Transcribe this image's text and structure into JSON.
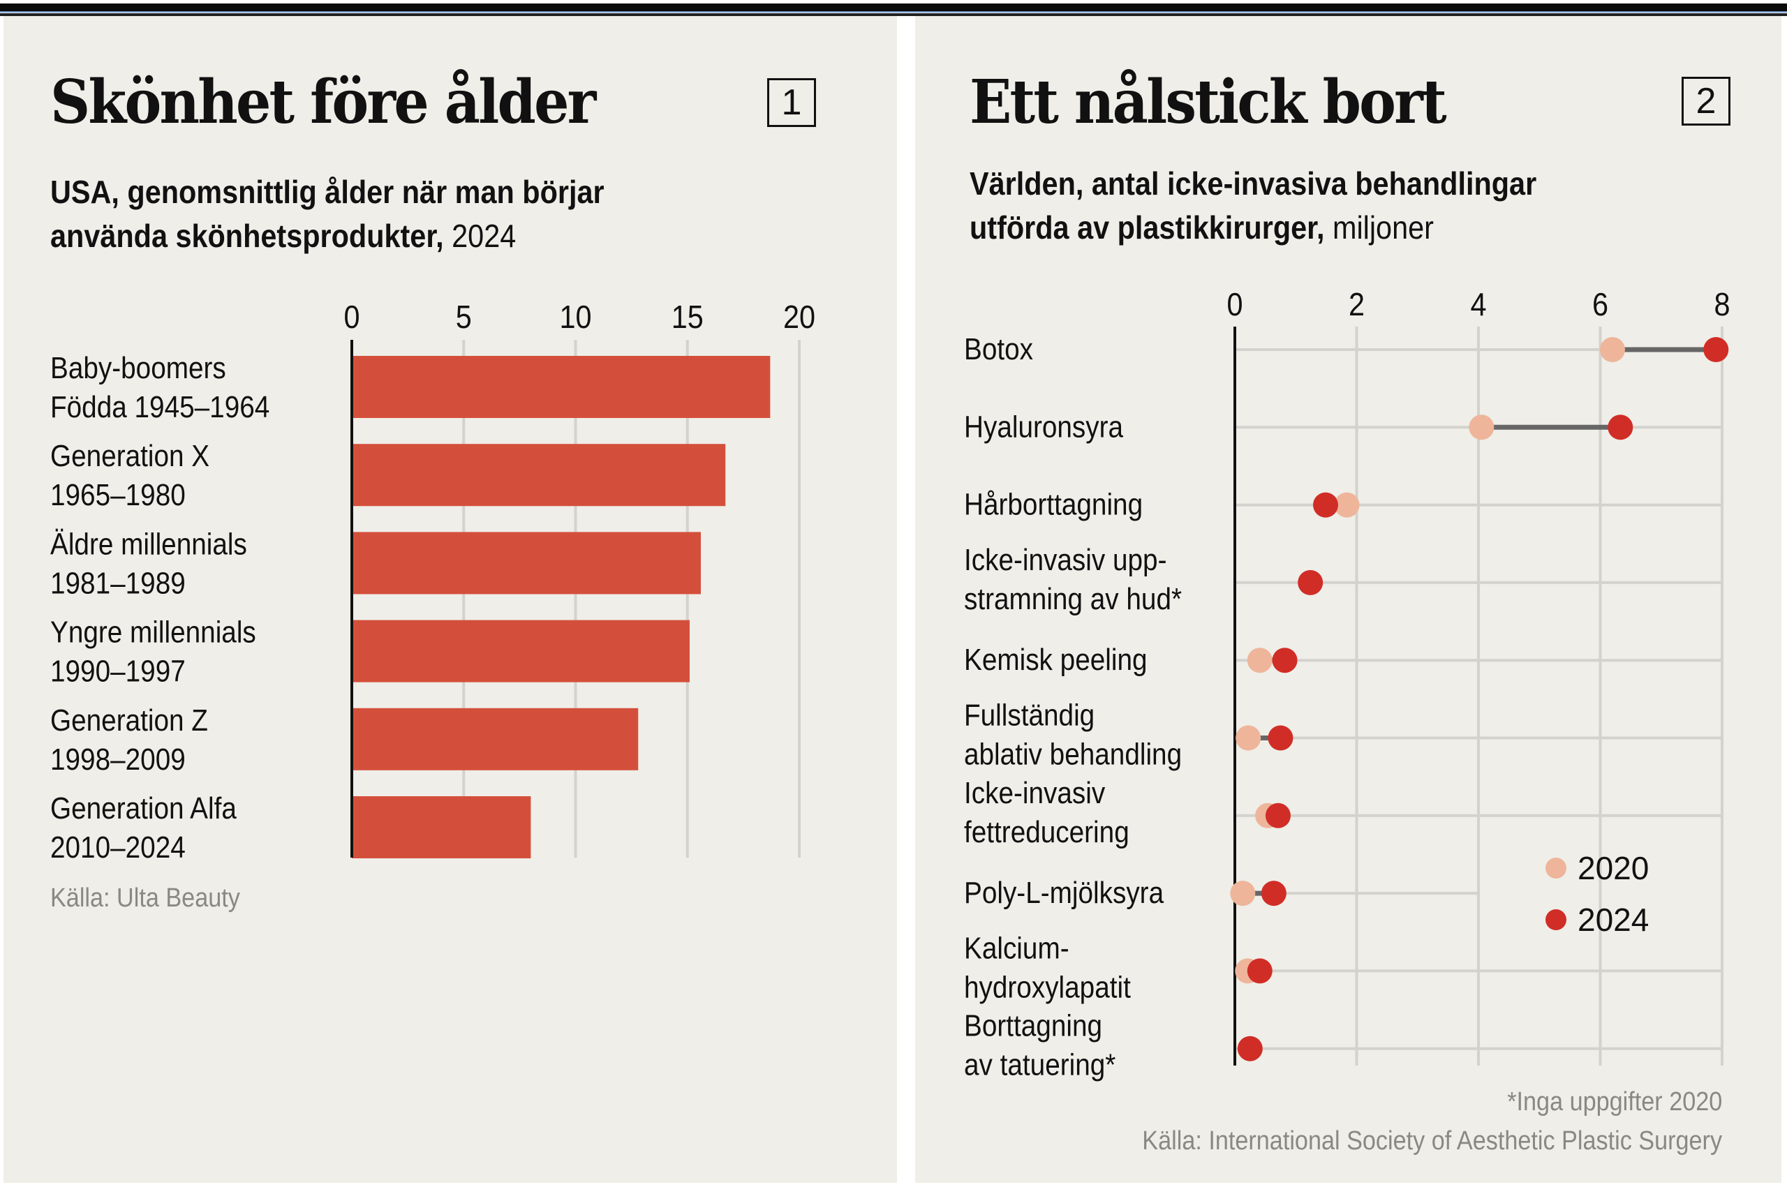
{
  "panels": [
    {
      "number": "1",
      "title": "Skönhet före ålder",
      "subtitle_bold": "USA, genomsnittlig ålder när man börjar använda skönhetsprodukter,",
      "subtitle_bold_line1": "USA, genomsnittlig ålder när man börjar",
      "subtitle_bold_line2": "använda skönhetsprodukter,",
      "subtitle_light": "2024",
      "source": "Källa: Ulta Beauty"
    },
    {
      "number": "2",
      "title": "Ett nålstick bort",
      "subtitle_bold_line1": "Världen, antal icke-invasiva behandlingar",
      "subtitle_bold_line2": "utförda av plastikkirurger,",
      "subtitle_light": "miljoner",
      "footnote": "*Inga uppgifter 2020",
      "source": "Källa: International Society of Aesthetic Plastic Surgery"
    }
  ],
  "colors": {
    "background": "#efeee8",
    "bar": "#d44f3b",
    "series_2020": "#eeb59b",
    "series_2024": "#d12d27",
    "connector": "#666666",
    "grid": "#d4d2cd",
    "axis": "#111111"
  },
  "chart_data": [
    {
      "type": "bar",
      "orientation": "horizontal",
      "title": "Skönhet före ålder",
      "subtitle": "USA, genomsnittlig ålder när man börjar använda skönhetsprodukter, 2024",
      "categories": [
        {
          "name": "Baby-boomers",
          "sub": "Födda 1945–1964"
        },
        {
          "name": "Generation X",
          "sub": "1965–1980"
        },
        {
          "name": "Äldre millennials",
          "sub": "1981–1989"
        },
        {
          "name": "Yngre millennials",
          "sub": "1990–1997"
        },
        {
          "name": "Generation Z",
          "sub": "1998–2009"
        },
        {
          "name": "Generation Alfa",
          "sub": "2010–2024"
        }
      ],
      "values": [
        18.7,
        16.7,
        15.6,
        15.1,
        12.8,
        8.0
      ],
      "xlim": [
        0,
        20
      ],
      "xticks": [
        0,
        5,
        10,
        15,
        20
      ],
      "xtick_labels": [
        "0",
        "5",
        "10",
        "15",
        "20"
      ],
      "grid": true,
      "xlabel": "",
      "ylabel": ""
    },
    {
      "type": "dumbbell",
      "title": "Ett nålstick bort",
      "subtitle": "Världen, antal icke-invasiva behandlingar utförda av plastikkirurger, miljoner",
      "categories": [
        {
          "lines": [
            "Botox"
          ]
        },
        {
          "lines": [
            "Hyaluronsyra"
          ]
        },
        {
          "lines": [
            "Hårborttagning"
          ]
        },
        {
          "lines": [
            "Icke-invasiv upp-",
            "stramning av hud*"
          ]
        },
        {
          "lines": [
            "Kemisk peeling"
          ]
        },
        {
          "lines": [
            "Fullständig",
            "ablativ behandling"
          ]
        },
        {
          "lines": [
            "Icke-invasiv",
            "fettreducering"
          ]
        },
        {
          "lines": [
            "Poly-L-mjölksyra"
          ]
        },
        {
          "lines": [
            "Kalcium-",
            "hydroxylapatit"
          ]
        },
        {
          "lines": [
            "Borttagning",
            "av tatuering*"
          ]
        }
      ],
      "series": [
        {
          "name": "2020",
          "values": [
            6.2,
            4.05,
            1.84,
            null,
            0.41,
            0.22,
            0.54,
            0.13,
            0.21,
            null
          ]
        },
        {
          "name": "2024",
          "values": [
            7.9,
            6.33,
            1.49,
            1.24,
            0.82,
            0.75,
            0.71,
            0.64,
            0.41,
            0.25
          ]
        }
      ],
      "xlim": [
        0,
        8
      ],
      "xticks": [
        0,
        2,
        4,
        6,
        8
      ],
      "xtick_labels": [
        "0",
        "2",
        "4",
        "6",
        "8"
      ],
      "legend": {
        "entries": [
          "2020",
          "2024"
        ],
        "placement": "lower-right"
      },
      "grid": true
    }
  ]
}
